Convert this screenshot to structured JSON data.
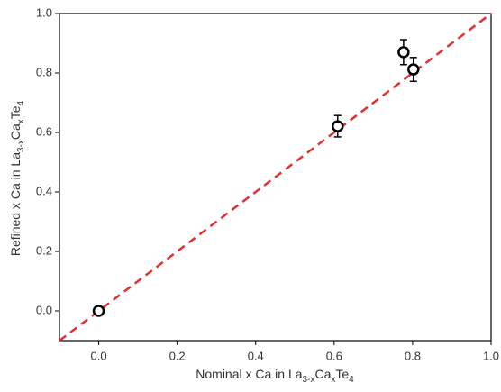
{
  "chart_data": {
    "type": "scatter",
    "xlabel": [
      "Nominal x Ca in La",
      "3-x",
      "Ca",
      "x",
      "Te",
      "4"
    ],
    "ylabel": [
      "Refined x Ca in La",
      "3-x",
      "Ca",
      "x",
      "Te",
      "4"
    ],
    "xlim": [
      -0.1,
      1.0
    ],
    "ylim": [
      -0.1,
      1.0
    ],
    "xticks": [
      {
        "value": 0,
        "label": "0.0"
      },
      {
        "value": 0.2,
        "label": "0.2"
      },
      {
        "value": 0.4,
        "label": "0.4"
      },
      {
        "value": 0.6,
        "label": "0.6"
      },
      {
        "value": 0.8,
        "label": "0.8"
      },
      {
        "value": 1,
        "label": "1.0"
      }
    ],
    "yticks": [
      {
        "value": 0,
        "label": "0.0"
      },
      {
        "value": 0.2,
        "label": "0.2"
      },
      {
        "value": 0.4,
        "label": "0.4"
      },
      {
        "value": 0.6,
        "label": "0.6"
      },
      {
        "value": 0.8,
        "label": "0.8"
      },
      {
        "value": 1,
        "label": "1.0"
      }
    ],
    "x": [
      0,
      0.609,
      0.777,
      0.802
    ],
    "values": [
      0,
      0.621,
      0.87,
      0.812
    ],
    "errors": [
      0,
      0.036,
      0.042,
      0.04
    ],
    "color": "#000000",
    "reference_line": {
      "color": "#e03030",
      "dashed": true
    }
  }
}
